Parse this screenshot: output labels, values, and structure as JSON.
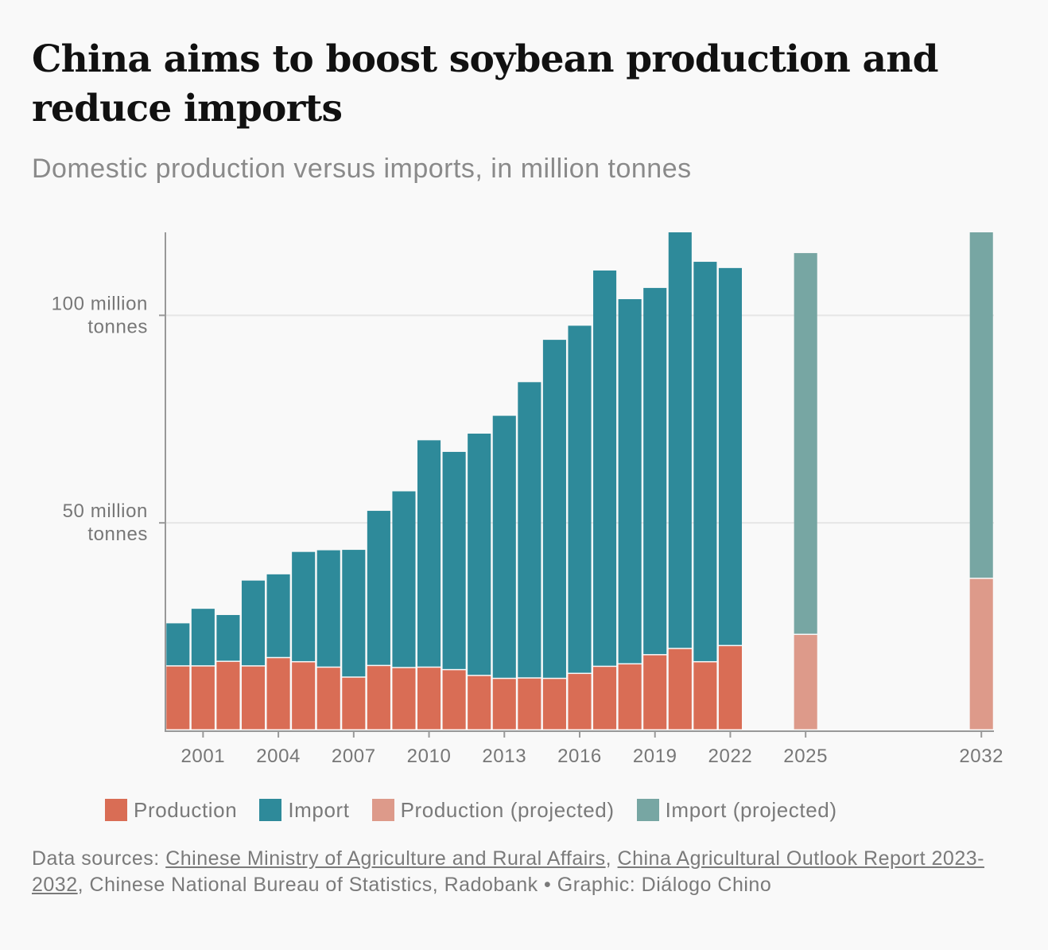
{
  "title": "China aims to boost soybean production and reduce imports",
  "subtitle": "Domestic production versus imports, in million tonnes",
  "colors": {
    "production": "#d96d55",
    "import": "#2e8a9a",
    "production_projected": "#dd9a8a",
    "import_projected": "#77a6a3",
    "axis": "#999999",
    "grid": "#e6e6e6"
  },
  "legend": [
    {
      "label": "Production",
      "color_key": "production"
    },
    {
      "label": "Import",
      "color_key": "import"
    },
    {
      "label": "Production (projected)",
      "color_key": "production_projected"
    },
    {
      "label": "Import (projected)",
      "color_key": "import_projected"
    }
  ],
  "source": {
    "prefix": "Data sources: ",
    "link1": "Chinese Ministry of Agriculture and Rural Affairs",
    "sep1": ", ",
    "link2": "China Agricultural Outlook Report 2023-2032",
    "rest": ", Chinese National Bureau of Statistics, Radobank • Graphic: Diálogo Chino"
  },
  "chart_data": {
    "type": "bar",
    "stacked": true,
    "title": "China aims to boost soybean production and reduce imports",
    "ylabel": "million tonnes",
    "ylim": [
      0,
      120
    ],
    "y_ticks": [
      {
        "value": 50,
        "line1": "50 million",
        "line2": "tonnes"
      },
      {
        "value": 100,
        "line1": "100 million",
        "line2": "tonnes"
      }
    ],
    "x_ticks": [
      "2001",
      "2004",
      "2007",
      "2010",
      "2013",
      "2016",
      "2019",
      "2022",
      "2025",
      "2032"
    ],
    "x_range": [
      1999.5,
      2032.5
    ],
    "years": [
      2000,
      2001,
      2002,
      2003,
      2004,
      2005,
      2006,
      2007,
      2008,
      2009,
      2010,
      2011,
      2012,
      2013,
      2014,
      2015,
      2016,
      2017,
      2018,
      2019,
      2020,
      2021,
      2022,
      2025,
      2032
    ],
    "series": [
      {
        "name": "Production",
        "values": [
          15.4,
          15.4,
          16.5,
          15.4,
          17.4,
          16.4,
          15.1,
          12.7,
          15.5,
          15.0,
          15.1,
          14.5,
          13.1,
          12.4,
          12.5,
          12.4,
          13.6,
          15.3,
          15.9,
          18.1,
          19.6,
          16.4,
          20.3,
          null,
          null
        ]
      },
      {
        "name": "Import",
        "values": [
          10.4,
          13.9,
          11.3,
          20.7,
          20.2,
          26.6,
          28.3,
          30.8,
          37.4,
          42.6,
          54.8,
          52.6,
          58.4,
          63.4,
          71.4,
          81.7,
          83.9,
          95.5,
          88.0,
          88.5,
          100.4,
          96.5,
          91.1,
          null,
          null
        ]
      },
      {
        "name": "Production (projected)",
        "values": [
          null,
          null,
          null,
          null,
          null,
          null,
          null,
          null,
          null,
          null,
          null,
          null,
          null,
          null,
          null,
          null,
          null,
          null,
          null,
          null,
          null,
          null,
          null,
          23.0,
          36.5
        ]
      },
      {
        "name": "Import (projected)",
        "values": [
          null,
          null,
          null,
          null,
          null,
          null,
          null,
          null,
          null,
          null,
          null,
          null,
          null,
          null,
          null,
          null,
          null,
          null,
          null,
          null,
          null,
          null,
          null,
          92.0,
          83.5
        ]
      }
    ]
  }
}
